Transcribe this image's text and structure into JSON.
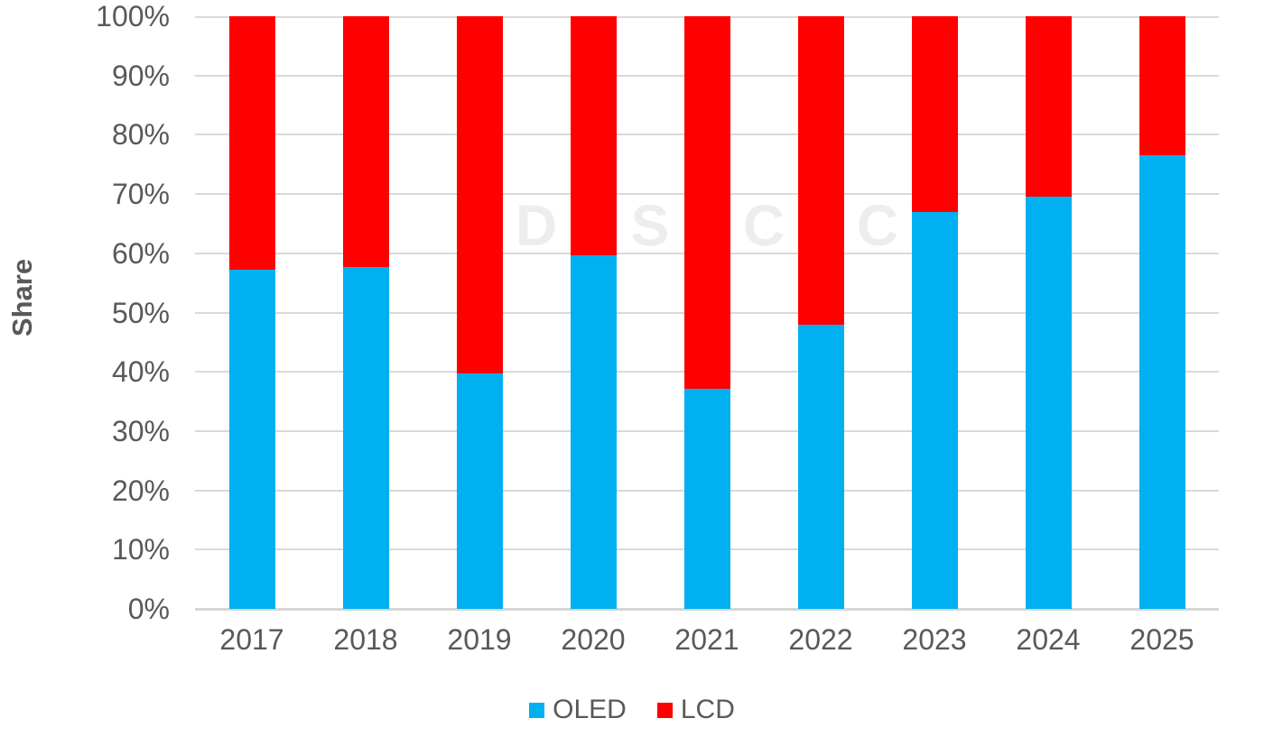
{
  "chart_data": {
    "type": "bar",
    "stacked": true,
    "percent_stacked": true,
    "title": "",
    "xlabel": "",
    "ylabel": "Share",
    "categories": [
      "2017",
      "2018",
      "2019",
      "2020",
      "2021",
      "2022",
      "2023",
      "2024",
      "2025"
    ],
    "series": [
      {
        "name": "OLED",
        "color": "#00B0F0",
        "values": [
          57.2,
          57.7,
          39.7,
          59.6,
          37.1,
          48.0,
          66.9,
          69.6,
          76.5
        ]
      },
      {
        "name": "LCD",
        "color": "#FF0000",
        "values": [
          42.8,
          42.3,
          60.3,
          40.4,
          62.9,
          52.0,
          33.1,
          30.4,
          23.5
        ]
      }
    ],
    "ylim": [
      0,
      100
    ],
    "ytick_step": 10,
    "ytick_suffix": "%",
    "ytick_labels": [
      "0%",
      "10%",
      "20%",
      "30%",
      "40%",
      "50%",
      "60%",
      "70%",
      "80%",
      "90%",
      "100%"
    ],
    "grid": "horizontal",
    "legend_position": "bottom-center",
    "legend_entries": [
      "OLED",
      "LCD"
    ],
    "watermark_letters": [
      "D",
      "S",
      "C",
      "C"
    ]
  },
  "colors": {
    "background": "#FFFFFF",
    "text": "#595959",
    "gridline": "#D9D9D9",
    "axis_line": "#D6D6D6",
    "watermark": "#EDEDED",
    "oled": "#00B0F0",
    "lcd": "#FF0000"
  }
}
